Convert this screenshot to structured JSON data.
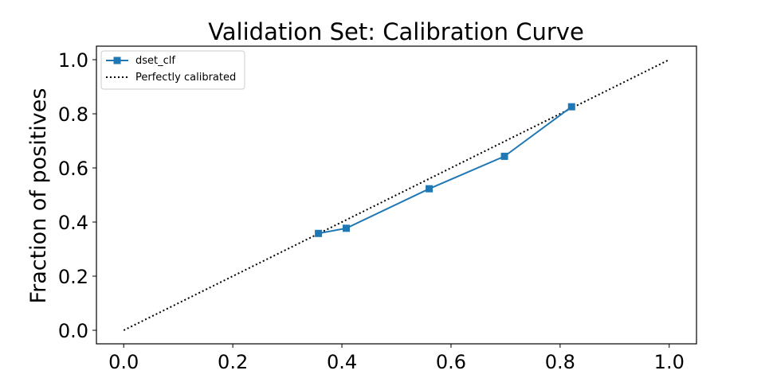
{
  "chart_data": {
    "type": "line",
    "title": "Validation Set: Calibration Curve",
    "xlabel": "",
    "ylabel": "Fraction of positives",
    "xlim": [
      -0.05,
      1.05
    ],
    "ylim": [
      -0.05,
      1.05
    ],
    "x_ticks": [
      "0.0",
      "0.2",
      "0.4",
      "0.6",
      "0.8",
      "1.0"
    ],
    "y_ticks": [
      "0.0",
      "0.2",
      "0.4",
      "0.6",
      "0.8",
      "1.0"
    ],
    "grid": false,
    "legend": {
      "placement": "top-left"
    },
    "series": [
      {
        "name": "dset_clf",
        "color": "#1f77b4",
        "marker": "square",
        "x": [
          0.357,
          0.408,
          0.56,
          0.698,
          0.821
        ],
        "y": [
          0.358,
          0.377,
          0.523,
          0.643,
          0.826
        ]
      },
      {
        "name": "Perfectly calibrated",
        "color": "#000000",
        "linestyle": "dotted",
        "x": [
          0.0,
          1.0
        ],
        "y": [
          0.0,
          1.0
        ]
      }
    ]
  }
}
